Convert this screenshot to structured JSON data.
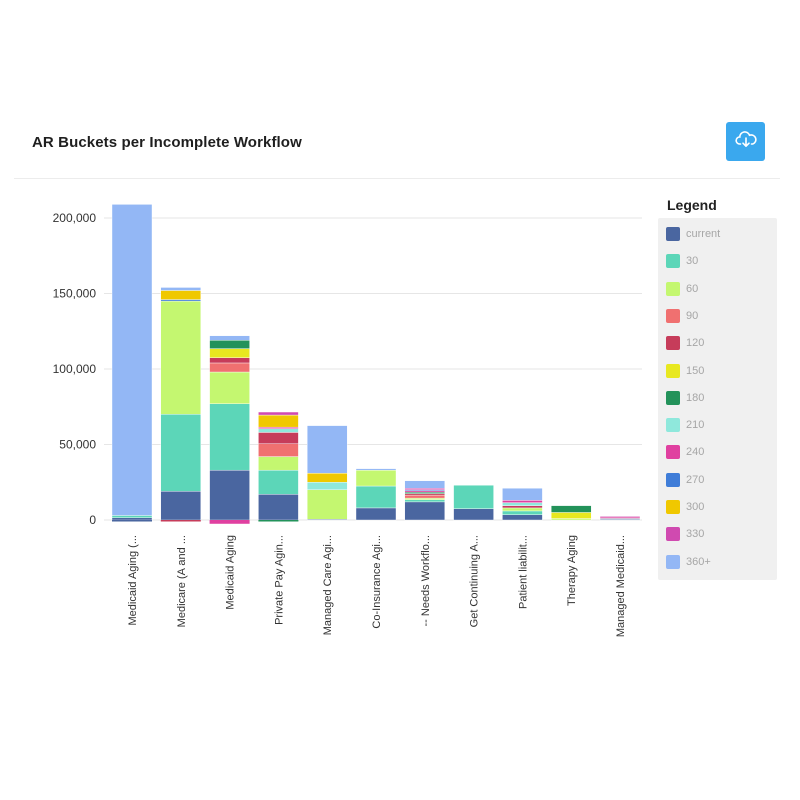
{
  "header": {
    "title": "AR Buckets per Incomplete Workflow"
  },
  "toolbar": {
    "download_icon": "cloud-download-icon",
    "download_color": "#3aa8ee"
  },
  "legend": {
    "title": "Legend"
  },
  "chart_data": {
    "type": "bar",
    "stacked": true,
    "title": "AR Buckets per Incomplete Workflow",
    "xlabel": "",
    "ylabel": "",
    "ylim": [
      0,
      220000
    ],
    "yticks": [
      0,
      50000,
      100000,
      150000,
      200000
    ],
    "ytick_labels": [
      "0",
      "50,000",
      "100,000",
      "150,000",
      "200,000"
    ],
    "legend_position": "right",
    "categories": [
      "Medicaid Aging (...",
      "Medicare (A and ...",
      "Medicaid Aging",
      "Private Pay Agin...",
      "Managed Care Agi...",
      "Co-Insurance Agi...",
      "-- Needs Workflo...",
      "Get Continuing A...",
      "Patient liabilit...",
      "Therapy Aging",
      "Managed Medicaid..."
    ],
    "series": [
      {
        "name": "current",
        "color": "#4a66a0",
        "values": [
          1500,
          19000,
          33000,
          17000,
          500,
          8000,
          12000,
          7500,
          3500,
          0,
          500
        ]
      },
      {
        "name": "30",
        "color": "#5cd6b8",
        "values": [
          1500,
          51000,
          44000,
          16000,
          0,
          14500,
          1500,
          15500,
          2500,
          0,
          500
        ]
      },
      {
        "name": "60",
        "color": "#c4f770",
        "values": [
          0,
          75000,
          21000,
          9000,
          19500,
          10500,
          1000,
          0,
          2000,
          1000,
          0
        ]
      },
      {
        "name": "90",
        "color": "#f07070",
        "values": [
          0,
          0,
          6000,
          8500,
          0,
          0,
          2000,
          0,
          0,
          0,
          0
        ]
      },
      {
        "name": "120",
        "color": "#c63c5a",
        "values": [
          0,
          0,
          3500,
          7500,
          0,
          0,
          1000,
          0,
          1500,
          0,
          0
        ]
      },
      {
        "name": "150",
        "color": "#e8e820",
        "values": [
          0,
          0,
          6000,
          0,
          0,
          0,
          0,
          0,
          0,
          4000,
          0
        ]
      },
      {
        "name": "180",
        "color": "#23925a",
        "values": [
          0,
          0,
          5500,
          0,
          0,
          0,
          1000,
          0,
          0,
          4500,
          0
        ]
      },
      {
        "name": "210",
        "color": "#8fe8dc",
        "values": [
          0,
          0,
          0,
          2500,
          5000,
          0,
          0,
          0,
          2000,
          0,
          0
        ]
      },
      {
        "name": "240",
        "color": "#e040a0",
        "values": [
          0,
          0,
          0,
          1000,
          0,
          0,
          1000,
          0,
          1500,
          0,
          1000
        ]
      },
      {
        "name": "270",
        "color": "#3f7dd8",
        "values": [
          0,
          1000,
          0,
          0,
          0,
          0,
          500,
          0,
          0,
          0,
          0
        ]
      },
      {
        "name": "300",
        "color": "#f0c800",
        "values": [
          0,
          6000,
          0,
          8000,
          6000,
          0,
          0,
          0,
          0,
          0,
          0
        ]
      },
      {
        "name": "330",
        "color": "#d04ab0",
        "values": [
          0,
          0,
          0,
          2000,
          0,
          0,
          1000,
          0,
          0,
          0,
          500
        ]
      },
      {
        "name": "360+",
        "color": "#93b7f5",
        "values": [
          206000,
          2000,
          3000,
          0,
          31500,
          1000,
          5000,
          0,
          8000,
          0,
          0
        ]
      }
    ],
    "negative_stacks": [
      {
        "category": 0,
        "series": "current",
        "value": -1000
      },
      {
        "category": 1,
        "series": "120",
        "value": -1000
      },
      {
        "category": 2,
        "series": "240",
        "value": -2500
      },
      {
        "category": 3,
        "series": "180",
        "value": -1000
      }
    ]
  }
}
